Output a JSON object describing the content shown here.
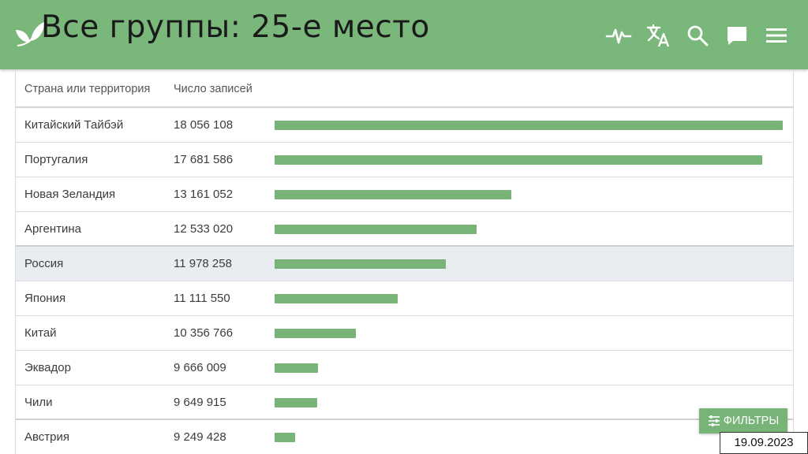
{
  "header": {
    "title": "Все группы: 25-е место",
    "icons": [
      "activity-icon",
      "translate-icon",
      "search-icon",
      "chat-icon",
      "menu-icon"
    ]
  },
  "table": {
    "columns": [
      "Страна или территория",
      "Число записей"
    ],
    "rows": [
      {
        "country": "Китайский Тайбэй",
        "count": "18 056 108",
        "value": 18056108
      },
      {
        "country": "Португалия",
        "count": "17 681 586",
        "value": 17681586
      },
      {
        "country": "Новая Зеландия",
        "count": "13 161 052",
        "value": 13161052
      },
      {
        "country": "Аргентина",
        "count": "12 533 020",
        "value": 12533020
      },
      {
        "country": "Россия",
        "count": "11 978 258",
        "value": 11978258
      },
      {
        "country": "Япония",
        "count": "11 111 550",
        "value": 11111550
      },
      {
        "country": "Китай",
        "count": "10 356 766",
        "value": 10356766
      },
      {
        "country": "Эквадор",
        "count": "9 666 009",
        "value": 9666009
      },
      {
        "country": "Чили",
        "count": "9 649 915",
        "value": 9649915
      },
      {
        "country": "Австрия",
        "count": "9 249 428",
        "value": 9249428
      }
    ],
    "highlighted_country": "Россия"
  },
  "filter_button": {
    "label": "ФИЛЬТРЫ"
  },
  "date_label": "19.09.2023",
  "colors": {
    "topbar": "#7ab77a",
    "bar": "#78b378",
    "highlight": "#e9edf1"
  }
}
